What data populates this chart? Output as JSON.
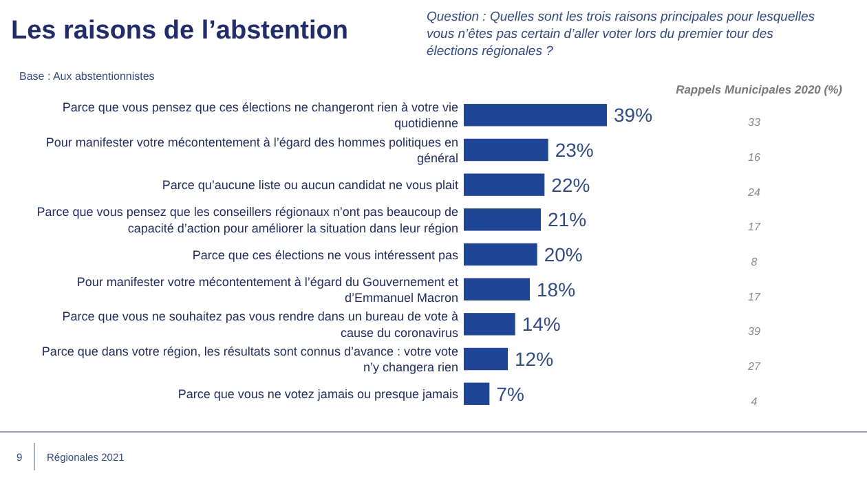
{
  "chart_data": {
    "type": "bar",
    "orientation": "horizontal",
    "title": "Les raisons de l’abstention",
    "subtitle": "Question : Quelles sont les trois raisons principales pour lesquelles vous n’êtes pas certain d’aller voter lors du premier tour des élections régionales ?",
    "categories": [
      "Parce que vous pensez que ces élections ne changeront rien à votre vie quotidienne",
      "Pour manifester votre mécontentement à l’égard des hommes politiques en général",
      "Parce qu’aucune liste ou aucun candidat ne vous plait",
      "Parce que vous pensez que les conseillers régionaux n’ont pas beaucoup de capacité d’action pour améliorer la situation dans leur région",
      "Parce que ces élections ne vous intéressent pas",
      "Pour manifester votre mécontentement à l’égard du Gouvernement et d’Emmanuel Macron",
      "Parce que vous ne souhaitez pas vous rendre dans un bureau de vote à cause du coronavirus",
      "Parce que dans votre région, les résultats sont connus d’avance : votre vote n’y changera rien",
      "Parce que vous ne votez jamais ou presque jamais"
    ],
    "values": [
      39,
      23,
      22,
      21,
      20,
      18,
      14,
      12,
      7
    ],
    "value_labels": [
      "39%",
      "23%",
      "22%",
      "21%",
      "20%",
      "18%",
      "14%",
      "12%",
      "7%"
    ],
    "color": "#1f4596",
    "annotations": [
      "Base : Aux abstentionnistes",
      "Rappels Municipales 2020 (%)",
      "33",
      "16",
      "24",
      "17",
      "8",
      "17",
      "39",
      "27",
      "4",
      "9",
      "Régionales 2021"
    ]
  }
}
